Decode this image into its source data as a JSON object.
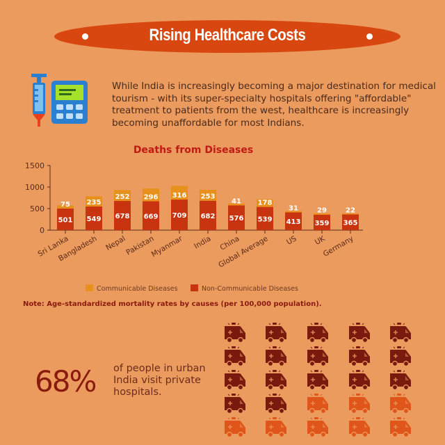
{
  "header": {
    "title": "Rising Healthcare Costs"
  },
  "intro": {
    "text": "While India is increasingly becoming a major destination for medical tourism - with its super-specialty hospitals offering \"affordable\" treatment to patients from the west, healthcare is increasingly becoming unaffordable for most Indians."
  },
  "icons": {
    "left": "syringe-icon",
    "right": "calculator-icon"
  },
  "chart_data": {
    "type": "bar",
    "stacked": true,
    "title": "Deaths from Diseases",
    "categories": [
      "Sri Lanka",
      "Bangladesh",
      "Nepal",
      "Pakistan",
      "Myanmar",
      "India",
      "China",
      "Global Average",
      "US",
      "UK",
      "Germany"
    ],
    "series": [
      {
        "name": "Non-Communicable Diseases",
        "color": "#c8340f",
        "values": [
          501,
          549,
          678,
          669,
          709,
          682,
          576,
          539,
          413,
          359,
          365
        ]
      },
      {
        "name": "Communicable Diseases",
        "color": "#e8901c",
        "values": [
          75,
          235,
          252,
          296,
          316,
          253,
          41,
          178,
          31,
          29,
          22
        ]
      }
    ],
    "yticks": [
      "0",
      "500",
      "1000",
      "1500"
    ],
    "ylim": [
      0,
      1500
    ],
    "legend": "bottom",
    "note": "Note: Age-standardized mortality rates by causes (per 100,000 population)."
  },
  "stat": {
    "value": "68%",
    "text": "of people in urban India visit private hospitals.",
    "icon": "ambulance-icon",
    "total_icons": 25,
    "highlighted_icons": 17,
    "highlight_color": "#7a1a0e",
    "base_color": "#e0561a"
  }
}
